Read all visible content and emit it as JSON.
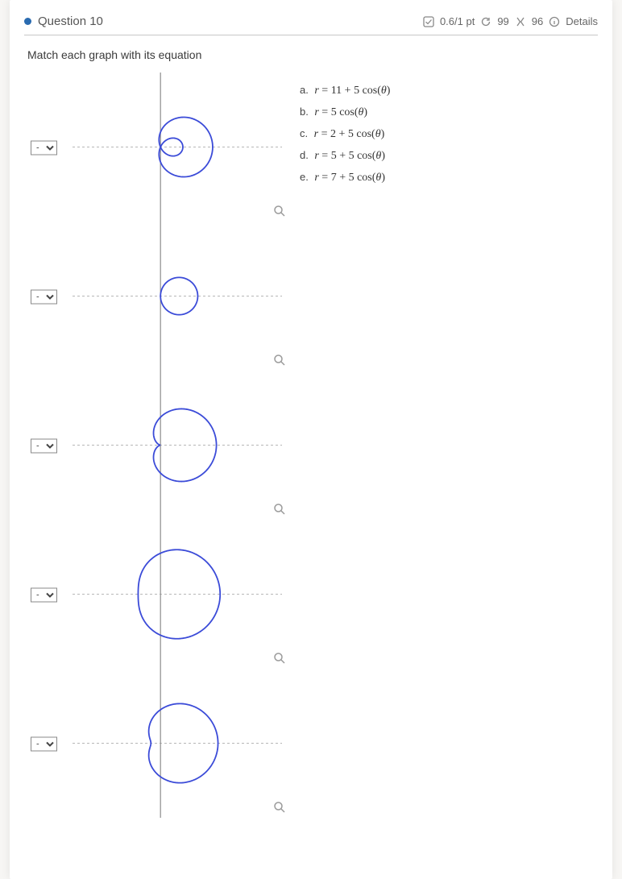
{
  "header": {
    "title": "Question 10",
    "score_text": "0.6/1 pt",
    "retry_count": "99",
    "attempts_count": "96",
    "details_label": "Details"
  },
  "prompt": "Match each graph with its equation",
  "colors": {
    "curve": "#3b4bd8",
    "axis": "#8d8d8d",
    "axis_dashed": "#b7b7b7",
    "dot": "#2a6bb0",
    "text": "#3a3a3a",
    "muted": "#666666",
    "background": "#ffffff"
  },
  "dropdown": {
    "placeholder": "-",
    "options": [
      "-",
      "a",
      "b",
      "c",
      "d",
      "e"
    ]
  },
  "answers": [
    {
      "letter": "a.",
      "eq_prefix": "r = ",
      "eq_body": "11 + 5 cos(θ)"
    },
    {
      "letter": "b.",
      "eq_prefix": "r = ",
      "eq_body": "5 cos(θ)"
    },
    {
      "letter": "c.",
      "eq_prefix": "r = ",
      "eq_body": "2 + 5 cos(θ)"
    },
    {
      "letter": "d.",
      "eq_prefix": "r = ",
      "eq_body": "5 + 5 cos(θ)"
    },
    {
      "letter": "e.",
      "eq_prefix": "r = ",
      "eq_body": "7 + 5 cos(θ)"
    }
  ],
  "graphs": [
    {
      "type": "limacon-inner-loop",
      "a": 2,
      "b": 5,
      "viewbox_half": 9,
      "axis_range": 9,
      "selected": "-"
    },
    {
      "type": "circle-cos",
      "a": 0,
      "b": 5,
      "viewbox_half": 9,
      "axis_range": 9,
      "selected": "-"
    },
    {
      "type": "cardioid",
      "a": 5,
      "b": 5,
      "viewbox_half": 12,
      "axis_range": 12,
      "selected": "-"
    },
    {
      "type": "convex-limacon",
      "a": 11,
      "b": 5,
      "viewbox_half": 18,
      "axis_range": 18,
      "selected": "-"
    },
    {
      "type": "dimpled-limacon",
      "a": 7,
      "b": 5,
      "viewbox_half": 14,
      "axis_range": 14,
      "selected": "-"
    }
  ]
}
